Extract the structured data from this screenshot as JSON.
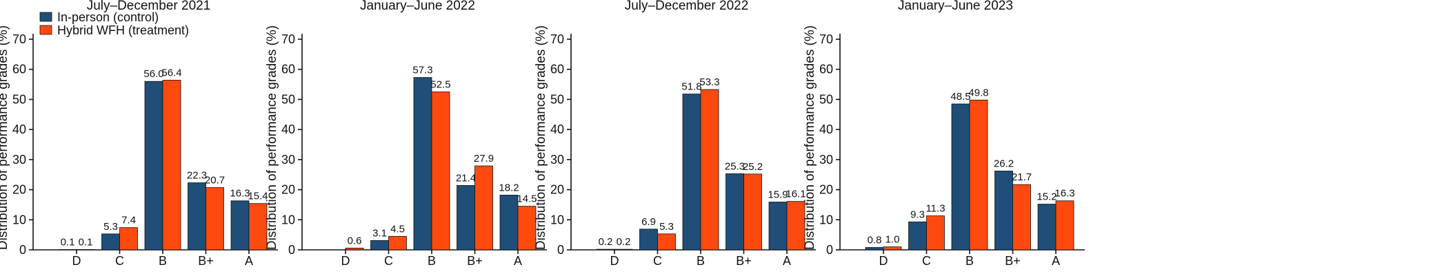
{
  "colors": {
    "control": "#1f4e79",
    "treatment": "#fe4a0f"
  },
  "legend": {
    "placement": "top-left",
    "items": [
      {
        "label": "In-person (control)",
        "color": "#1f4e79"
      },
      {
        "label": "Hybrid WFH (treatment)",
        "color": "#fe4a0f"
      }
    ]
  },
  "chart_data": [
    {
      "type": "bar",
      "title": "July–December 2021",
      "xlabel": "",
      "ylabel": "Distribution of performance grades (%)",
      "ylim": [
        0,
        70
      ],
      "yticks": [
        0,
        10,
        20,
        30,
        40,
        50,
        60,
        70
      ],
      "grid": false,
      "categories": [
        "D",
        "C",
        "B",
        "B+",
        "A"
      ],
      "series": [
        {
          "name": "In-person (control)",
          "values": [
            0.1,
            5.3,
            56.0,
            22.3,
            16.3
          ],
          "labels": [
            "0.1",
            "5.3",
            "56.0",
            "22.3",
            "16.3"
          ]
        },
        {
          "name": "Hybrid WFH (treatment)",
          "values": [
            0.1,
            7.4,
            56.4,
            20.7,
            15.4
          ],
          "labels": [
            "0.1",
            "7.4",
            "56.4",
            "20.7",
            "15.4"
          ]
        }
      ]
    },
    {
      "type": "bar",
      "title": "January–June 2022",
      "xlabel": "",
      "ylabel": "Distribution of performance grades (%)",
      "ylim": [
        0,
        70
      ],
      "yticks": [
        0,
        10,
        20,
        30,
        40,
        50,
        60,
        70
      ],
      "grid": false,
      "categories": [
        "D",
        "C",
        "B",
        "B+",
        "A"
      ],
      "series": [
        {
          "name": "In-person (control)",
          "values": [
            0.0,
            3.1,
            57.3,
            21.4,
            18.2
          ],
          "labels": [
            "",
            "3.1",
            "57.3",
            "21.4",
            "18.2"
          ]
        },
        {
          "name": "Hybrid WFH (treatment)",
          "values": [
            0.6,
            4.5,
            52.5,
            27.9,
            14.5
          ],
          "labels": [
            "0.6",
            "4.5",
            "52.5",
            "27.9",
            "14.5"
          ]
        }
      ]
    },
    {
      "type": "bar",
      "title": "July–December 2022",
      "xlabel": "",
      "ylabel": "Distribution of performance grades (%)",
      "ylim": [
        0,
        70
      ],
      "yticks": [
        0,
        10,
        20,
        30,
        40,
        50,
        60,
        70
      ],
      "grid": false,
      "categories": [
        "D",
        "C",
        "B",
        "B+",
        "A"
      ],
      "series": [
        {
          "name": "In-person (control)",
          "values": [
            0.2,
            6.9,
            51.8,
            25.3,
            15.9
          ],
          "labels": [
            "0.2",
            "6.9",
            "51.8",
            "25.3",
            "15.9"
          ]
        },
        {
          "name": "Hybrid WFH (treatment)",
          "values": [
            0.2,
            5.3,
            53.3,
            25.2,
            16.1
          ],
          "labels": [
            "0.2",
            "5.3",
            "53.3",
            "25.2",
            "16.1"
          ]
        }
      ]
    },
    {
      "type": "bar",
      "title": "January–June 2023",
      "xlabel": "",
      "ylabel": "Distribution of performance grades (%)",
      "ylim": [
        0,
        70
      ],
      "yticks": [
        0,
        10,
        20,
        30,
        40,
        50,
        60,
        70
      ],
      "grid": false,
      "categories": [
        "D",
        "C",
        "B",
        "B+",
        "A"
      ],
      "series": [
        {
          "name": "In-person (control)",
          "values": [
            0.8,
            9.3,
            48.5,
            26.2,
            15.2
          ],
          "labels": [
            "0.8",
            "9.3",
            "48.5",
            "26.2",
            "15.2"
          ]
        },
        {
          "name": "Hybrid WFH (treatment)",
          "values": [
            1.0,
            11.3,
            49.8,
            21.7,
            16.3
          ],
          "labels": [
            "1.0",
            "11.3",
            "49.8",
            "21.7",
            "16.3"
          ]
        }
      ]
    }
  ]
}
